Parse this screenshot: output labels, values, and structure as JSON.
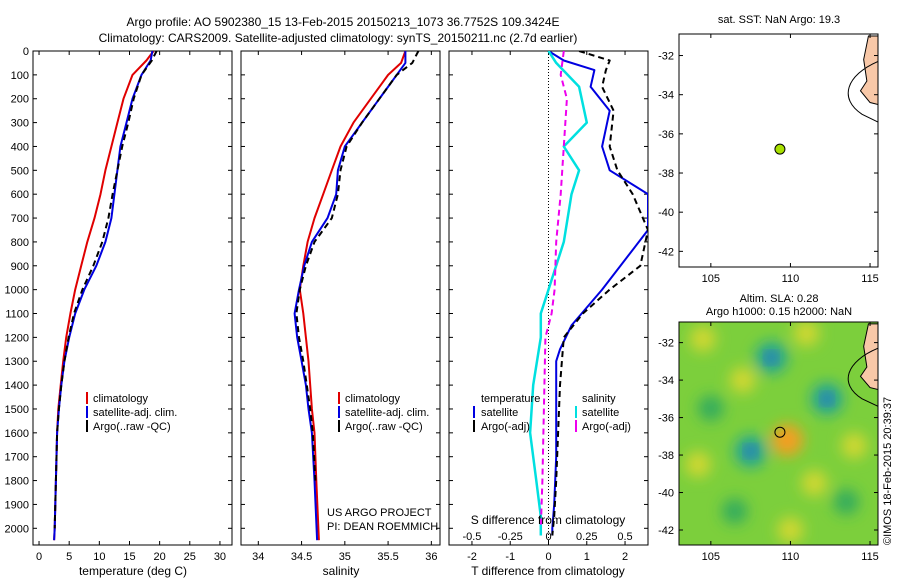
{
  "header": {
    "line1": "Argo profile: AO 5902380_15 13-Feb-2015 20150213_1073 36.7752S 109.3424E",
    "line2": "Climatology: CARS2009. Satellite-adjusted climatology: synTS_20150211.nc (2.7d earlier)"
  },
  "colors": {
    "climatology": "#e00000",
    "satellite": "#0000e0",
    "argo": "#000000",
    "satellite_salinity": "#00e0e0",
    "argo_salinity": "#ee00ee",
    "land": "#f8c8a8",
    "float_marker": "#a8e000"
  },
  "chart_data": [
    {
      "type": "line",
      "name": "temperature-profile",
      "xlabel": "temperature (deg C)",
      "xlim": [
        -1,
        32
      ],
      "ylim": [
        2070,
        0
      ],
      "yticks": [
        0,
        100,
        200,
        300,
        400,
        500,
        600,
        700,
        800,
        900,
        1000,
        1100,
        1200,
        1300,
        1400,
        1500,
        1600,
        1700,
        1800,
        1900,
        2000
      ],
      "xticks": [
        0,
        5,
        10,
        15,
        20,
        25,
        30
      ],
      "legend": {
        "position": "lower-center",
        "entries": [
          "climatology",
          "satellite-adj. clim.",
          "Argo(..raw -QC)"
        ]
      },
      "series": [
        {
          "name": "climatology",
          "style": "solid",
          "color": "#e00000",
          "x": [
            19.0,
            17.8,
            15.5,
            14.0,
            13.0,
            12.0,
            11.0,
            10.2,
            9.2,
            8.0,
            7.0,
            6.0,
            5.2,
            4.5,
            4.0,
            3.6,
            3.2,
            3.0,
            2.8,
            2.6,
            2.5
          ],
          "y": [
            0,
            40,
            100,
            200,
            300,
            400,
            500,
            600,
            700,
            800,
            900,
            1000,
            1100,
            1200,
            1300,
            1400,
            1500,
            1600,
            1800,
            2000,
            2050
          ]
        },
        {
          "name": "satellite-adj. clim.",
          "style": "solid",
          "color": "#0000e0",
          "x": [
            18.8,
            18.5,
            17.0,
            15.5,
            14.5,
            13.5,
            13.0,
            12.5,
            12.0,
            11.0,
            9.5,
            7.5,
            6.0,
            5.0,
            4.2,
            3.7,
            3.3,
            3.0,
            2.8,
            2.6,
            2.5
          ],
          "y": [
            0,
            40,
            100,
            200,
            300,
            400,
            500,
            600,
            700,
            800,
            900,
            1000,
            1100,
            1200,
            1300,
            1400,
            1500,
            1600,
            1800,
            2000,
            2050
          ]
        },
        {
          "name": "Argo(..raw -QC)",
          "style": "dashed",
          "color": "#000000",
          "x": [
            19.5,
            18.7,
            17.0,
            15.7,
            14.8,
            13.8,
            13.0,
            12.2,
            11.5,
            10.5,
            9.0,
            7.2,
            5.8,
            4.9,
            4.2,
            3.7,
            3.3,
            3.0,
            2.8,
            2.6
          ],
          "y": [
            0,
            40,
            100,
            200,
            300,
            400,
            500,
            600,
            700,
            800,
            900,
            1000,
            1100,
            1200,
            1300,
            1400,
            1500,
            1600,
            1800,
            2000
          ]
        }
      ]
    },
    {
      "type": "line",
      "name": "salinity-profile",
      "xlabel": "salinity",
      "xlim": [
        33.8,
        36.1
      ],
      "ylim": [
        2070,
        0
      ],
      "xticks": [
        34,
        34.5,
        35,
        35.5,
        36
      ],
      "legend": {
        "position": "lower-center",
        "entries": [
          "climatology",
          "satellite-adj. clim.",
          "Argo(..raw -QC)"
        ]
      },
      "annotation": [
        "US ARGO PROJECT",
        "PI: DEAN ROEMMICH"
      ],
      "series": [
        {
          "name": "climatology",
          "style": "solid",
          "color": "#e00000",
          "x": [
            35.7,
            35.65,
            35.5,
            35.3,
            35.1,
            34.95,
            34.85,
            34.75,
            34.65,
            34.57,
            34.52,
            34.48,
            34.52,
            34.55,
            34.58,
            34.6,
            34.62,
            34.65,
            34.67,
            34.7
          ],
          "y": [
            0,
            50,
            100,
            200,
            300,
            400,
            500,
            600,
            700,
            800,
            900,
            1000,
            1100,
            1200,
            1300,
            1400,
            1500,
            1600,
            1800,
            2050
          ]
        },
        {
          "name": "satellite-adj. clim.",
          "style": "solid",
          "color": "#0000e0",
          "x": [
            35.7,
            35.7,
            35.6,
            35.4,
            35.2,
            35.0,
            34.92,
            34.9,
            34.8,
            34.62,
            34.53,
            34.47,
            34.42,
            34.45,
            34.5,
            34.55,
            34.58,
            34.62,
            34.65,
            34.68
          ],
          "y": [
            0,
            50,
            100,
            200,
            300,
            400,
            500,
            600,
            700,
            800,
            900,
            1000,
            1100,
            1200,
            1300,
            1400,
            1500,
            1600,
            1800,
            2050
          ]
        },
        {
          "name": "Argo(..raw -QC)",
          "style": "dashed",
          "color": "#000000",
          "x": [
            35.85,
            35.78,
            35.6,
            35.4,
            35.2,
            35.02,
            34.95,
            34.92,
            34.85,
            34.65,
            34.55,
            34.48,
            34.44,
            34.47,
            34.52,
            34.56,
            34.6,
            34.63,
            34.66
          ],
          "y": [
            0,
            50,
            100,
            200,
            300,
            400,
            500,
            600,
            700,
            800,
            900,
            1000,
            1100,
            1200,
            1300,
            1400,
            1500,
            1600,
            1800
          ]
        }
      ]
    },
    {
      "type": "line",
      "name": "difference-profile",
      "xlabel": "T difference from climatology",
      "x2label": "S difference from climatology",
      "xlim": [
        -2.6,
        2.6
      ],
      "x2lim": [
        -0.65,
        0.65
      ],
      "ylim": [
        2070,
        0
      ],
      "xticks": [
        -2,
        -1,
        0,
        1,
        2
      ],
      "x2ticks": [
        -0.5,
        -0.25,
        0,
        0.25,
        0.5
      ],
      "legend": {
        "position": "lower-center",
        "temperature_title": "temperature",
        "salinity_title": "salinity",
        "entries": [
          "satellite",
          "Argo(-adj)",
          "satellite",
          "Argo(-adj)"
        ]
      },
      "series": [
        {
          "name": "temperature satellite",
          "style": "solid",
          "color": "#0000e0",
          "axis": "T",
          "x": [
            0.0,
            0.4,
            1.2,
            1.1,
            1.6,
            1.4,
            1.6,
            2.6,
            2.6,
            1.4,
            0.6,
            0.3,
            0.2,
            0.2,
            0.2,
            0.15,
            0.1,
            0.1
          ],
          "y": [
            0,
            40,
            80,
            150,
            250,
            400,
            500,
            600,
            750,
            1000,
            1150,
            1250,
            1300,
            1500,
            1700,
            1900,
            2000,
            2030
          ]
        },
        {
          "name": "temperature Argo(-adj)",
          "style": "dashed",
          "color": "#000000",
          "axis": "T",
          "x": [
            0.8,
            1.6,
            1.5,
            1.4,
            1.7,
            1.6,
            1.8,
            2.2,
            2.6,
            2.4,
            1.6,
            0.9,
            0.4,
            0.3,
            0.25,
            0.2,
            0.15,
            0.1
          ],
          "y": [
            0,
            40,
            80,
            150,
            250,
            400,
            500,
            600,
            750,
            900,
            1000,
            1100,
            1200,
            1400,
            1600,
            1800,
            1950,
            2030
          ]
        },
        {
          "name": "salinity satellite",
          "style": "solid",
          "color": "#00e0e0",
          "axis": "S",
          "x": [
            0.0,
            0.05,
            0.2,
            0.25,
            0.1,
            0.2,
            0.15,
            0.1,
            0.0,
            -0.05,
            -0.05,
            -0.1,
            -0.12,
            -0.08,
            -0.05,
            -0.05
          ],
          "y": [
            0,
            50,
            150,
            300,
            400,
            500,
            600,
            800,
            1000,
            1100,
            1200,
            1400,
            1600,
            1800,
            1950,
            2030
          ]
        },
        {
          "name": "salinity Argo(-adj)",
          "style": "dashed",
          "color": "#ee00ee",
          "axis": "S",
          "x": [
            0.1,
            0.08,
            0.12,
            0.1,
            0.08,
            0.05,
            0.04,
            0.02,
            -0.02,
            -0.03,
            -0.04,
            -0.05
          ],
          "y": [
            0,
            100,
            200,
            400,
            600,
            800,
            1000,
            1100,
            1200,
            1500,
            1800,
            2000
          ]
        }
      ]
    },
    {
      "type": "scatter",
      "name": "sst-map",
      "title": "sat. SST: NaN Argo: 19.3",
      "xlim": [
        103,
        115.5
      ],
      "ylim": [
        -42.8,
        -30.9
      ],
      "xticks": [
        105,
        110,
        115
      ],
      "yticks": [
        -32,
        -34,
        -36,
        -38,
        -40,
        -42
      ],
      "points": [
        {
          "x": 109.34,
          "y": -36.78
        }
      ]
    },
    {
      "type": "heatmap",
      "name": "sla-map",
      "title1": "Altim. SLA: 0.28",
      "title2": "Argo h1000: 0.15 h2000: NaN",
      "xlim": [
        103,
        115.5
      ],
      "ylim": [
        -42.8,
        -30.9
      ],
      "xticks": [
        105,
        110,
        115
      ],
      "yticks": [
        -32,
        -34,
        -36,
        -38,
        -40,
        -42
      ],
      "points": [
        {
          "x": 109.34,
          "y": -36.78
        }
      ],
      "blobs": [
        {
          "x": 108.8,
          "y": -32.8,
          "v": -1
        },
        {
          "x": 107.5,
          "y": -37.8,
          "v": -1
        },
        {
          "x": 112.3,
          "y": -35.0,
          "v": -1
        },
        {
          "x": 105.0,
          "y": -35.5,
          "v": -0.5
        },
        {
          "x": 113.5,
          "y": -40.5,
          "v": -0.6
        },
        {
          "x": 106.5,
          "y": -41.0,
          "v": -0.4
        },
        {
          "x": 109.8,
          "y": -37.2,
          "v": 1
        },
        {
          "x": 104.5,
          "y": -31.8,
          "v": 0.7
        },
        {
          "x": 111.0,
          "y": -31.5,
          "v": 0.5
        },
        {
          "x": 104.2,
          "y": -38.5,
          "v": 0.4
        },
        {
          "x": 111.5,
          "y": -39.5,
          "v": 0.5
        },
        {
          "x": 110.0,
          "y": -42.0,
          "v": 0.5
        },
        {
          "x": 114.0,
          "y": -37.5,
          "v": 0.4
        },
        {
          "x": 107.0,
          "y": -34.0,
          "v": 0.3
        }
      ]
    }
  ],
  "footer": {
    "watermark": "©IMOS 18-Feb-2015 20:39:37"
  }
}
